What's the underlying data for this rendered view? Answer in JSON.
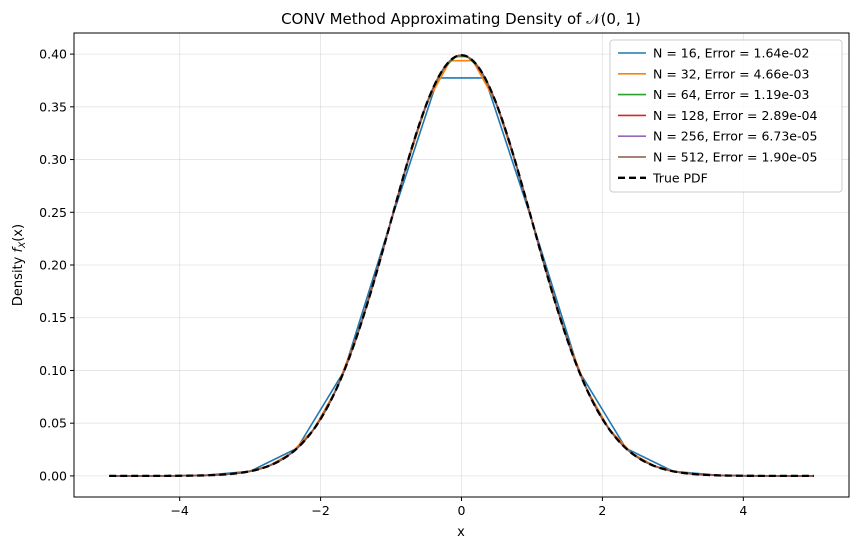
{
  "chart_data": {
    "type": "line",
    "title": "CONV Method Approximating Density of 𝒩(0, 1)",
    "xlabel": "x",
    "ylabel": "Density f_X(x)",
    "ylabel_main": "Density ",
    "ylabel_f": "f",
    "ylabel_sub": "X",
    "ylabel_arg": "(x)",
    "xlim": [
      -5.5,
      5.5
    ],
    "ylim": [
      -0.02,
      0.42
    ],
    "xticks": [
      -4,
      -2,
      0,
      2,
      4
    ],
    "xtick_labels": [
      "−4",
      "−2",
      "0",
      "2",
      "4"
    ],
    "yticks": [
      0.0,
      0.05,
      0.1,
      0.15,
      0.2,
      0.25,
      0.3,
      0.35,
      0.4
    ],
    "ytick_labels": [
      "0.00",
      "0.05",
      "0.10",
      "0.15",
      "0.20",
      "0.25",
      "0.30",
      "0.35",
      "0.40"
    ],
    "grid": true,
    "legend_position": "top-right",
    "x_range": [
      -5,
      5
    ],
    "series": [
      {
        "name": "N = 16, Error = 1.64e-02",
        "N": 16,
        "color": "#1f77b4",
        "style": "solid"
      },
      {
        "name": "N = 32, Error = 4.66e-03",
        "N": 32,
        "color": "#ff7f0e",
        "style": "solid"
      },
      {
        "name": "N = 64, Error = 1.19e-03",
        "N": 64,
        "color": "#2ca02c",
        "style": "solid"
      },
      {
        "name": "N = 128, Error = 2.89e-04",
        "N": 128,
        "color": "#d62728",
        "style": "solid"
      },
      {
        "name": "N = 256, Error = 6.73e-05",
        "N": 256,
        "color": "#9467bd",
        "style": "solid"
      },
      {
        "name": "N = 512, Error = 1.90e-05",
        "N": 512,
        "color": "#8c564b",
        "style": "solid"
      },
      {
        "name": "True PDF",
        "N": 0,
        "color": "#000000",
        "style": "dashed"
      }
    ]
  }
}
